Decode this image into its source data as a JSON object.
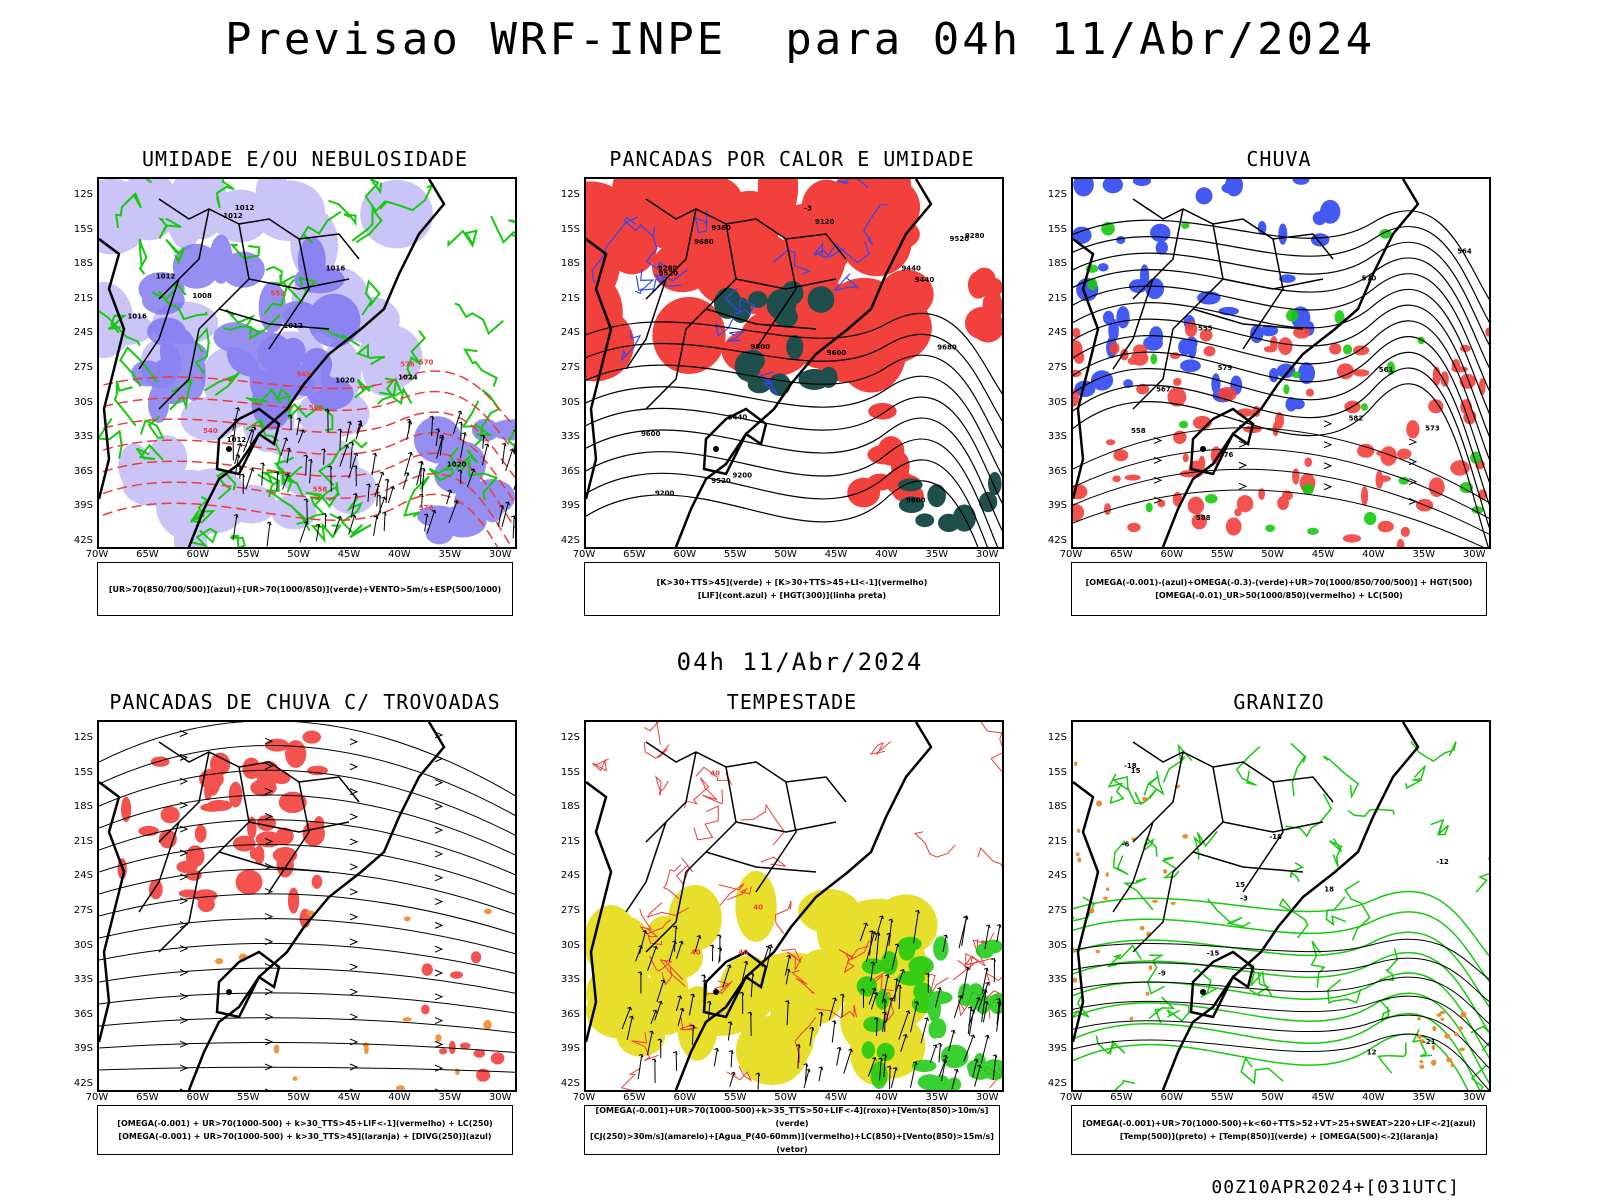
{
  "page": {
    "title": "Previsao WRF-INPE  para 04h 11/Abr/2024",
    "mid_title": "04h 11/Abr/2024",
    "footer": "00Z10APR2024+[031UTC]"
  },
  "axes": {
    "lat_labels": [
      "12S",
      "15S",
      "18S",
      "21S",
      "24S",
      "27S",
      "30S",
      "33S",
      "36S",
      "39S",
      "42S"
    ],
    "lon_labels": [
      "70W",
      "65W",
      "60W",
      "55W",
      "50W",
      "45W",
      "40W",
      "35W",
      "30W"
    ]
  },
  "colors": {
    "humidity_blue": "#7b74f0",
    "humidity_light": "#bdb6f6",
    "green_contour": "#17c90f",
    "red_fill": "#f2403c",
    "dark_teal": "#1f4f4c",
    "orange": "#f08a2c",
    "yellow": "#e8df2c",
    "contour_red": "#ef3b3b",
    "blue_contour": "#2f48f2"
  },
  "panels": [
    {
      "id": "umidade",
      "title": "UMIDADE E/OU NEBULOSIDADE",
      "legend": [
        "[UR>70(850/700/500)](azul)+[UR>70(1000/850)](verde)+VENTO>5m/s+ESP(500/1000)"
      ],
      "contour_labels": [
        "1008",
        "1012",
        "1012",
        "1012",
        "1012",
        "1016",
        "1016",
        "1020",
        "1020",
        "1024",
        "1012",
        "576",
        "576",
        "570",
        "564",
        "558",
        "552",
        "546",
        "540"
      ]
    },
    {
      "id": "pancadas-calor",
      "title": "PANCADAS POR CALOR E UMIDADE",
      "legend": [
        "[K>30+TTS>45](verde) + [K>30+TTS>45+LI<-1](vermelho)",
        "[LIF](cont.azul) + [HGT(300)](linha preta)"
      ],
      "contour_labels": [
        "9680",
        "9680",
        "9600",
        "9600",
        "9600",
        "9520",
        "9600",
        "9520",
        "9440",
        "9520",
        "9440",
        "9360",
        "9280",
        "9280",
        "9200",
        "9120",
        "9200",
        "9440",
        "-3"
      ]
    },
    {
      "id": "chuva",
      "title": "CHUVA",
      "legend": [
        "[OMEGA(-0.001)-(azul)+OMEGA(-0.3)-(verde)+UR>70(1000/850/700/500)] + HGT(500)",
        "[OMEGA(-0.01)_UR>50(1000/850)(vermelho) + LC(500)"
      ],
      "contour_labels": [
        "588",
        "582",
        "579",
        "576",
        "573",
        "570",
        "567",
        "564",
        "561",
        "558",
        "555"
      ]
    },
    {
      "id": "pancadas-trovoadas",
      "title": "PANCADAS DE CHUVA C/ TROVOADAS",
      "legend": [
        "[OMEGA(-0.001) + UR>70(1000-500) + k>30_TTS>45+LIF<-1](vermelho) + LC(250)",
        "[OMEGA(-0.001) + UR>70(1000-500) + k>30_TTS>45](laranja) + [DIVG(250)](azul)"
      ],
      "contour_labels": []
    },
    {
      "id": "tempestade",
      "title": "TEMPESTADE",
      "legend": [
        "[OMEGA(-0.001)+UR>70(1000-500)+k>35_TTS>50+LIF<-4](roxo)+[Vento(850)>10m/s](verde)",
        "[CJ(250)>30m/s](amarelo)+[Agua_P(40-60mm)](vermelho)+LC(850)+[Vento(850)>15m/s](vetor)"
      ],
      "contour_labels": [
        "40",
        "40",
        "40",
        "40"
      ]
    },
    {
      "id": "granizo",
      "title": "GRANIZO",
      "legend": [
        "[OMEGA(-0.001)+UR>70(1000-500)+k<60+TTS>52+VT>25+SWEAT>220+LIF<-2](azul)",
        "[Temp(500)](preto) + [Temp(850)](verde) + [OMEGA(500)<-2](laranja)"
      ],
      "contour_labels": [
        "-3",
        "-6",
        "-9",
        "-12",
        "-15",
        "-18",
        "-21",
        "-18",
        "15",
        "18",
        "12",
        "15"
      ]
    }
  ]
}
